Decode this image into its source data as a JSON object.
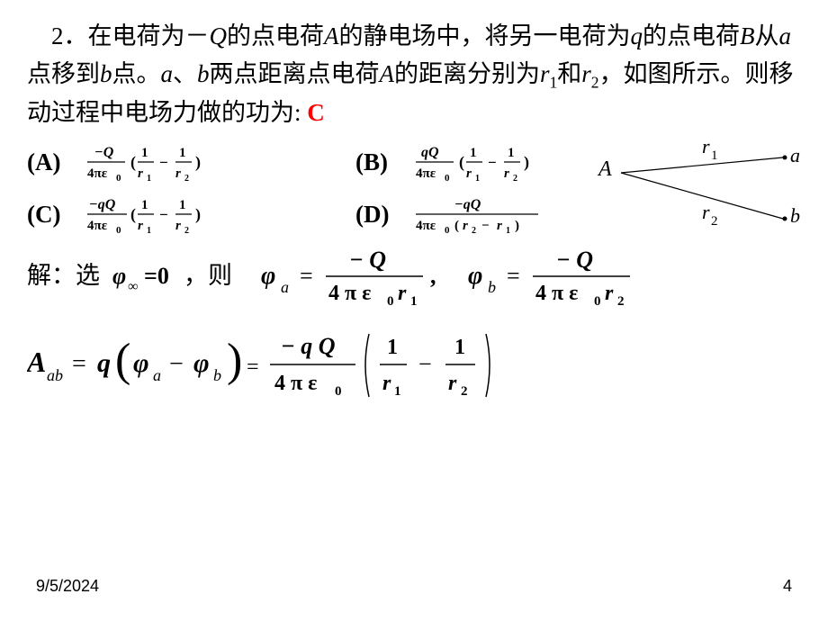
{
  "problem": {
    "prefix_num": "2．",
    "text_html": "在电荷为－<span class='italic'>Q</span>的点电荷<span class='italic'>A</span>的静电场中，将另一电荷为<span class='italic'>q</span>的点电荷<span class='italic'>B</span>从<span class='italic'>a</span>点移到<span class='italic'>b</span>点。<span class='italic'>a</span>、<span class='italic'>b</span>两点距离点电荷<span class='italic'>A</span>的距离分别为<span class='italic'>r</span><span class='sub'>1</span>和<span class='italic'>r</span><span class='sub'>2</span>，如图所示。则移动过程中电场力做的功为: ",
    "answer": "C",
    "answer_color": "#ff0000"
  },
  "options": {
    "A": {
      "label": "(A)",
      "numerator": "-Q",
      "den_prefix": "4πε",
      "den_sub": "0",
      "paren": true
    },
    "B": {
      "label": "(B)",
      "numerator": "qQ",
      "den_prefix": "4πε",
      "den_sub": "0",
      "paren": true
    },
    "C": {
      "label": "(C)",
      "numerator": "-qQ",
      "den_prefix": "4πε",
      "den_sub": "0",
      "paren": true
    },
    "D": {
      "label": "(D)",
      "numerator": "-qQ",
      "den_prefix": "4πε",
      "den_sub": "0",
      "den_tail": "(r₂ - r₁)",
      "paren": false
    }
  },
  "solution": {
    "prefix": "解：选",
    "phi_inf": "φ",
    "eq_zero": " =0，则",
    "phi_a_lhs": "φ",
    "phi_a_sub": "a",
    "phi_b_lhs": "φ",
    "phi_b_sub": "b",
    "num_a": "- Q",
    "num_b": "- Q",
    "den": "4 π ε",
    "den_sub": "0"
  },
  "work_eq": {
    "lhs": "A",
    "lhs_sub": "ab",
    "rhs_q": "q",
    "phi_a": "φ",
    "sub_a": "a",
    "phi_b": "φ",
    "sub_b": "b",
    "frac_num": "- q Q",
    "frac_den": "4 π ε",
    "frac_den_sub": "0"
  },
  "diagram": {
    "point_A": "A",
    "point_a": "a",
    "point_b": "b",
    "r1": "r",
    "r1_sub": "1",
    "r2": "r",
    "r2_sub": "2"
  },
  "footer": {
    "date": "9/5/2024",
    "page": "4"
  },
  "style": {
    "text_color": "#000000",
    "answer_color": "#ff0000",
    "background": "#ffffff",
    "font_main": "SimSun, Times New Roman, serif",
    "problem_fontsize": 27,
    "option_fontsize": 27,
    "footer_fontsize": 18
  }
}
